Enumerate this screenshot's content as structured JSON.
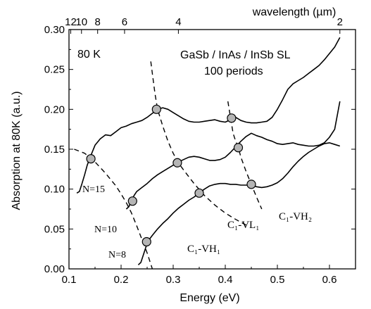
{
  "chart_data": {
    "type": "line",
    "title": "",
    "xlabel": "Energy (eV)",
    "ylabel": "Absorption at 80K (a.u.)",
    "top_axis_label": "wavelength (µm)",
    "xlim": [
      0.1,
      0.65
    ],
    "ylim": [
      0.0,
      0.3
    ],
    "x_ticks": [
      0.1,
      0.2,
      0.3,
      0.4,
      0.5,
      0.6
    ],
    "x_tick_labels": [
      "0.1",
      "0.2",
      "0.3",
      "0.4",
      "0.5",
      "0.6"
    ],
    "y_ticks": [
      0.0,
      0.05,
      0.1,
      0.15,
      0.2,
      0.25,
      0.3
    ],
    "y_tick_labels": [
      "0.00",
      "0.05",
      "0.10",
      "0.15",
      "0.20",
      "0.25",
      "0.30"
    ],
    "top_ticks": [
      {
        "label": "12",
        "wavelength": 12
      },
      {
        "label": "10",
        "wavelength": 10
      },
      {
        "label": "8",
        "wavelength": 8
      },
      {
        "label": "6",
        "wavelength": 6
      },
      {
        "label": "4",
        "wavelength": 4
      },
      {
        "label": "2",
        "wavelength": 2
      }
    ],
    "grid": false,
    "annotations": {
      "temperature": "80 K",
      "sample_line1": "GaSb / InAs / InSb SL",
      "sample_line2": "100 periods"
    },
    "series": [
      {
        "name": "N=15",
        "x": [
          0.115,
          0.12,
          0.125,
          0.13,
          0.135,
          0.14,
          0.145,
          0.15,
          0.16,
          0.17,
          0.18,
          0.19,
          0.2,
          0.21,
          0.22,
          0.23,
          0.24,
          0.25,
          0.26,
          0.27,
          0.28,
          0.29,
          0.3,
          0.31,
          0.32,
          0.33,
          0.34,
          0.35,
          0.36,
          0.37,
          0.38,
          0.39,
          0.4,
          0.41,
          0.42,
          0.43,
          0.44,
          0.45,
          0.46,
          0.47,
          0.48,
          0.49,
          0.5,
          0.51,
          0.52,
          0.53,
          0.54,
          0.55,
          0.56,
          0.57,
          0.58,
          0.59,
          0.6,
          0.61,
          0.62
        ],
        "y": [
          0.095,
          0.097,
          0.107,
          0.118,
          0.13,
          0.139,
          0.147,
          0.155,
          0.163,
          0.168,
          0.167,
          0.172,
          0.177,
          0.179,
          0.182,
          0.184,
          0.186,
          0.19,
          0.195,
          0.2,
          0.202,
          0.2,
          0.196,
          0.192,
          0.188,
          0.185,
          0.184,
          0.184,
          0.185,
          0.186,
          0.187,
          0.185,
          0.184,
          0.187,
          0.19,
          0.186,
          0.184,
          0.183,
          0.183,
          0.184,
          0.185,
          0.19,
          0.2,
          0.212,
          0.225,
          0.232,
          0.236,
          0.24,
          0.245,
          0.25,
          0.255,
          0.262,
          0.27,
          0.278,
          0.29
        ]
      },
      {
        "name": "N=10",
        "x": [
          0.21,
          0.215,
          0.22,
          0.225,
          0.23,
          0.24,
          0.25,
          0.26,
          0.27,
          0.28,
          0.29,
          0.3,
          0.31,
          0.32,
          0.33,
          0.34,
          0.35,
          0.36,
          0.37,
          0.38,
          0.39,
          0.4,
          0.41,
          0.42,
          0.43,
          0.44,
          0.45,
          0.46,
          0.47,
          0.48,
          0.49,
          0.5,
          0.51,
          0.52,
          0.53,
          0.54,
          0.55,
          0.56,
          0.57,
          0.58,
          0.59,
          0.6,
          0.61,
          0.62
        ],
        "y": [
          0.075,
          0.078,
          0.086,
          0.092,
          0.097,
          0.102,
          0.107,
          0.113,
          0.118,
          0.122,
          0.126,
          0.13,
          0.134,
          0.137,
          0.14,
          0.141,
          0.14,
          0.138,
          0.136,
          0.136,
          0.137,
          0.14,
          0.146,
          0.153,
          0.16,
          0.166,
          0.17,
          0.167,
          0.165,
          0.162,
          0.16,
          0.157,
          0.156,
          0.157,
          0.158,
          0.156,
          0.155,
          0.154,
          0.154,
          0.155,
          0.158,
          0.165,
          0.175,
          0.21
        ]
      },
      {
        "name": "N=8",
        "x": [
          0.233,
          0.238,
          0.243,
          0.248,
          0.252,
          0.26,
          0.27,
          0.28,
          0.29,
          0.3,
          0.31,
          0.32,
          0.33,
          0.34,
          0.35,
          0.36,
          0.37,
          0.38,
          0.39,
          0.4,
          0.41,
          0.42,
          0.43,
          0.44,
          0.45,
          0.46,
          0.47,
          0.48,
          0.49,
          0.5,
          0.51,
          0.52,
          0.53,
          0.54,
          0.55,
          0.56,
          0.57,
          0.58,
          0.59,
          0.6,
          0.61,
          0.62
        ],
        "y": [
          0.005,
          0.008,
          0.018,
          0.028,
          0.035,
          0.042,
          0.05,
          0.057,
          0.063,
          0.07,
          0.076,
          0.081,
          0.086,
          0.09,
          0.095,
          0.1,
          0.104,
          0.106,
          0.107,
          0.107,
          0.106,
          0.106,
          0.105,
          0.105,
          0.105,
          0.103,
          0.102,
          0.103,
          0.105,
          0.108,
          0.113,
          0.12,
          0.128,
          0.135,
          0.141,
          0.146,
          0.15,
          0.154,
          0.157,
          0.158,
          0.156,
          0.154
        ]
      }
    ],
    "transition_curves": [
      {
        "label": "C₁-VH₁",
        "x": [
          0.11,
          0.13,
          0.15,
          0.17,
          0.19,
          0.2,
          0.21,
          0.22,
          0.23,
          0.24,
          0.25,
          0.26
        ],
        "y": [
          0.15,
          0.145,
          0.134,
          0.12,
          0.104,
          0.094,
          0.083,
          0.07,
          0.054,
          0.037,
          0.02,
          0.0
        ]
      },
      {
        "label": "C₁-VL₁",
        "x": [
          0.257,
          0.26,
          0.265,
          0.27,
          0.28,
          0.29,
          0.3,
          0.31,
          0.32,
          0.34,
          0.36,
          0.38,
          0.4,
          0.42,
          0.44
        ],
        "y": [
          0.26,
          0.245,
          0.22,
          0.2,
          0.179,
          0.16,
          0.145,
          0.133,
          0.124,
          0.107,
          0.092,
          0.08,
          0.07,
          0.062,
          0.055
        ]
      },
      {
        "label": "C₁-VH₂",
        "x": [
          0.405,
          0.41,
          0.415,
          0.42,
          0.425,
          0.43,
          0.44,
          0.45,
          0.46,
          0.47
        ],
        "y": [
          0.21,
          0.19,
          0.17,
          0.16,
          0.152,
          0.14,
          0.122,
          0.106,
          0.09,
          0.075
        ]
      }
    ],
    "markers": [
      {
        "x": 0.142,
        "y": 0.138
      },
      {
        "x": 0.268,
        "y": 0.2
      },
      {
        "x": 0.412,
        "y": 0.189
      },
      {
        "x": 0.222,
        "y": 0.085
      },
      {
        "x": 0.308,
        "y": 0.133
      },
      {
        "x": 0.425,
        "y": 0.152
      },
      {
        "x": 0.249,
        "y": 0.034
      },
      {
        "x": 0.35,
        "y": 0.095
      },
      {
        "x": 0.45,
        "y": 0.106
      }
    ],
    "series_labels": [
      "N=15",
      "N=10",
      "N=8"
    ]
  }
}
